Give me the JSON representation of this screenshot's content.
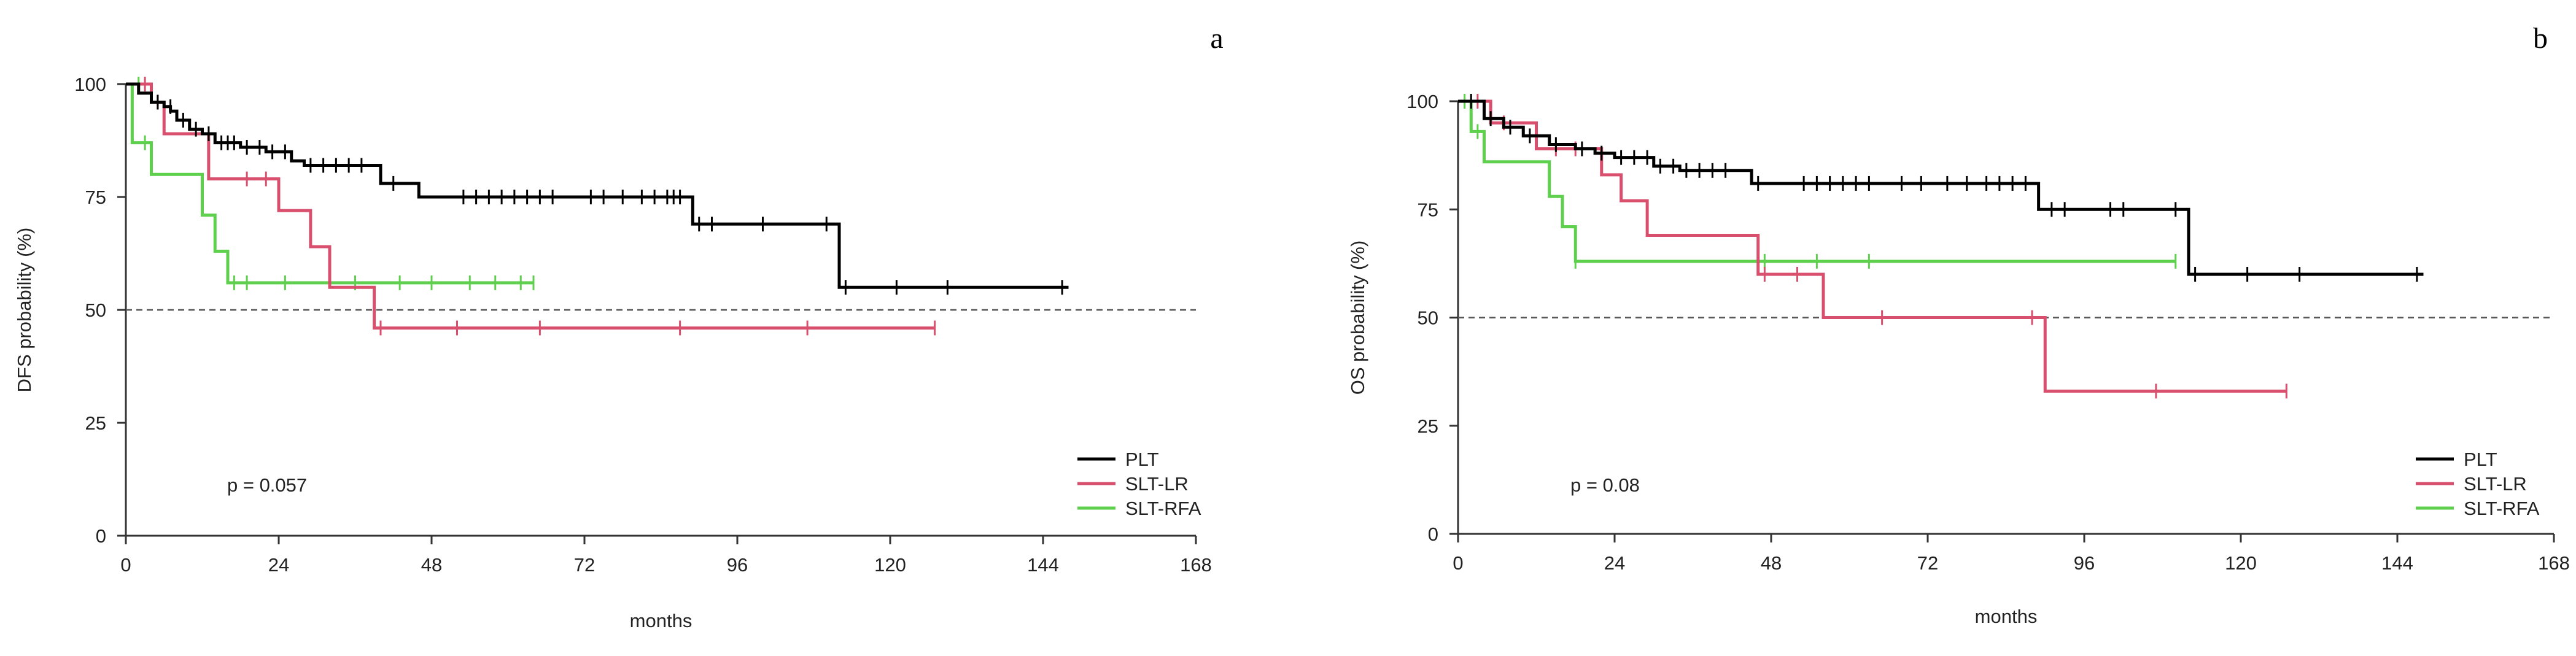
{
  "chart_data": [
    {
      "type": "line",
      "subtype": "kaplan-meier",
      "panel_label": "a",
      "xlabel": "months",
      "ylabel": "DFS probability (%)",
      "xlim": [
        0,
        168
      ],
      "ylim": [
        0,
        100
      ],
      "xticks": [
        0,
        24,
        48,
        72,
        96,
        120,
        144,
        168
      ],
      "yticks": [
        0,
        25,
        50,
        75,
        100
      ],
      "reference_line": 50,
      "annotation": "p = 0.057",
      "legend_position": "bottom-right",
      "series": [
        {
          "name": "PLT",
          "color": "#000000",
          "steps": [
            [
              0,
              100
            ],
            [
              2,
              98
            ],
            [
              4,
              96
            ],
            [
              6,
              95
            ],
            [
              7,
              94
            ],
            [
              8,
              92
            ],
            [
              10,
              90
            ],
            [
              12,
              89
            ],
            [
              14,
              87
            ],
            [
              18,
              86
            ],
            [
              22,
              85
            ],
            [
              26,
              83
            ],
            [
              28,
              82
            ],
            [
              40,
              78
            ],
            [
              46,
              75
            ],
            [
              89,
              69
            ],
            [
              112,
              55
            ],
            [
              148,
              55
            ]
          ],
          "censors": [
            [
              5,
              96
            ],
            [
              7,
              95
            ],
            [
              9,
              92
            ],
            [
              11,
              90
            ],
            [
              13,
              89
            ],
            [
              15,
              87
            ],
            [
              16,
              87
            ],
            [
              17,
              87
            ],
            [
              19,
              86
            ],
            [
              21,
              86
            ],
            [
              23,
              85
            ],
            [
              25,
              85
            ],
            [
              29,
              82
            ],
            [
              31,
              82
            ],
            [
              33,
              82
            ],
            [
              35,
              82
            ],
            [
              37,
              82
            ],
            [
              42,
              78
            ],
            [
              53,
              75
            ],
            [
              55,
              75
            ],
            [
              57,
              75
            ],
            [
              59,
              75
            ],
            [
              61,
              75
            ],
            [
              63,
              75
            ],
            [
              65,
              75
            ],
            [
              67,
              75
            ],
            [
              73,
              75
            ],
            [
              75,
              75
            ],
            [
              78,
              75
            ],
            [
              81,
              75
            ],
            [
              83,
              75
            ],
            [
              85,
              75
            ],
            [
              86,
              75
            ],
            [
              87,
              75
            ],
            [
              90,
              69
            ],
            [
              92,
              69
            ],
            [
              100,
              69
            ],
            [
              110,
              69
            ],
            [
              113,
              55
            ],
            [
              121,
              55
            ],
            [
              129,
              55
            ],
            [
              147,
              55
            ]
          ]
        },
        {
          "name": "SLT-LR",
          "color": "#d9506e",
          "steps": [
            [
              0,
              100
            ],
            [
              4,
              96
            ],
            [
              6,
              89
            ],
            [
              13,
              79
            ],
            [
              24,
              72
            ],
            [
              29,
              64
            ],
            [
              32,
              55
            ],
            [
              39,
              46
            ],
            [
              127,
              46
            ]
          ],
          "censors": [
            [
              3,
              100
            ],
            [
              5,
              96
            ],
            [
              19,
              79
            ],
            [
              22,
              79
            ],
            [
              40,
              46
            ],
            [
              52,
              46
            ],
            [
              65,
              46
            ],
            [
              87,
              46
            ],
            [
              107,
              46
            ],
            [
              127,
              46
            ]
          ]
        },
        {
          "name": "SLT-RFA",
          "color": "#5fcf4e",
          "steps": [
            [
              0,
              100
            ],
            [
              1,
              87
            ],
            [
              4,
              80
            ],
            [
              12,
              71
            ],
            [
              14,
              63
            ],
            [
              16,
              56
            ],
            [
              64,
              56
            ]
          ],
          "censors": [
            [
              2,
              100
            ],
            [
              3,
              87
            ],
            [
              17,
              56
            ],
            [
              19,
              56
            ],
            [
              25,
              56
            ],
            [
              36,
              56
            ],
            [
              43,
              56
            ],
            [
              48,
              56
            ],
            [
              54,
              56
            ],
            [
              58,
              56
            ],
            [
              62,
              56
            ],
            [
              64,
              56
            ]
          ]
        }
      ]
    },
    {
      "type": "line",
      "subtype": "kaplan-meier",
      "panel_label": "b",
      "xlabel": "months",
      "ylabel": "OS probability (%)",
      "xlim": [
        0,
        168
      ],
      "ylim": [
        0,
        100
      ],
      "xticks": [
        0,
        24,
        48,
        72,
        96,
        120,
        144,
        168
      ],
      "yticks": [
        0,
        25,
        50,
        75,
        100
      ],
      "reference_line": 50,
      "annotation": "p = 0.08",
      "legend_position": "bottom-right",
      "series": [
        {
          "name": "PLT",
          "color": "#000000",
          "steps": [
            [
              0,
              100
            ],
            [
              4,
              96
            ],
            [
              7,
              94
            ],
            [
              10,
              92
            ],
            [
              14,
              90
            ],
            [
              18,
              89
            ],
            [
              21,
              88
            ],
            [
              24,
              87
            ],
            [
              30,
              85
            ],
            [
              34,
              84
            ],
            [
              45,
              81
            ],
            [
              89,
              75
            ],
            [
              112,
              60
            ],
            [
              148,
              60
            ]
          ],
          "censors": [
            [
              2,
              100
            ],
            [
              5,
              96
            ],
            [
              8,
              94
            ],
            [
              11,
              92
            ],
            [
              15,
              90
            ],
            [
              19,
              89
            ],
            [
              22,
              88
            ],
            [
              25,
              87
            ],
            [
              27,
              87
            ],
            [
              29,
              87
            ],
            [
              31,
              85
            ],
            [
              33,
              85
            ],
            [
              35,
              84
            ],
            [
              37,
              84
            ],
            [
              39,
              84
            ],
            [
              41,
              84
            ],
            [
              46,
              81
            ],
            [
              53,
              81
            ],
            [
              55,
              81
            ],
            [
              57,
              81
            ],
            [
              59,
              81
            ],
            [
              61,
              81
            ],
            [
              63,
              81
            ],
            [
              68,
              81
            ],
            [
              71,
              81
            ],
            [
              75,
              81
            ],
            [
              78,
              81
            ],
            [
              81,
              81
            ],
            [
              83,
              81
            ],
            [
              85,
              81
            ],
            [
              87,
              81
            ],
            [
              91,
              75
            ],
            [
              93,
              75
            ],
            [
              100,
              75
            ],
            [
              102,
              75
            ],
            [
              110,
              75
            ],
            [
              113,
              60
            ],
            [
              121,
              60
            ],
            [
              129,
              60
            ],
            [
              147,
              60
            ]
          ]
        },
        {
          "name": "SLT-LR",
          "color": "#d9506e",
          "steps": [
            [
              0,
              100
            ],
            [
              5,
              95
            ],
            [
              12,
              89
            ],
            [
              22,
              83
            ],
            [
              25,
              77
            ],
            [
              29,
              69
            ],
            [
              46,
              60
            ],
            [
              56,
              50
            ],
            [
              90,
              33
            ],
            [
              127,
              33
            ]
          ],
          "censors": [
            [
              3,
              100
            ],
            [
              7,
              95
            ],
            [
              15,
              89
            ],
            [
              18,
              89
            ],
            [
              47,
              60
            ],
            [
              52,
              60
            ],
            [
              65,
              50
            ],
            [
              88,
              50
            ],
            [
              107,
              33
            ],
            [
              127,
              33
            ]
          ],
          "extra_steps_note": ""
        },
        {
          "name": "SLT-RFA",
          "color": "#5fcf4e",
          "steps": [
            [
              0,
              100
            ],
            [
              2,
              93
            ],
            [
              4,
              86
            ],
            [
              14,
              78
            ],
            [
              16,
              71
            ],
            [
              18,
              63
            ],
            [
              110,
              63
            ]
          ],
          "censors": [
            [
              1,
              100
            ],
            [
              3,
              93
            ],
            [
              18,
              63
            ],
            [
              47,
              63
            ],
            [
              55,
              63
            ],
            [
              63,
              63
            ],
            [
              110,
              63
            ]
          ]
        }
      ]
    }
  ]
}
